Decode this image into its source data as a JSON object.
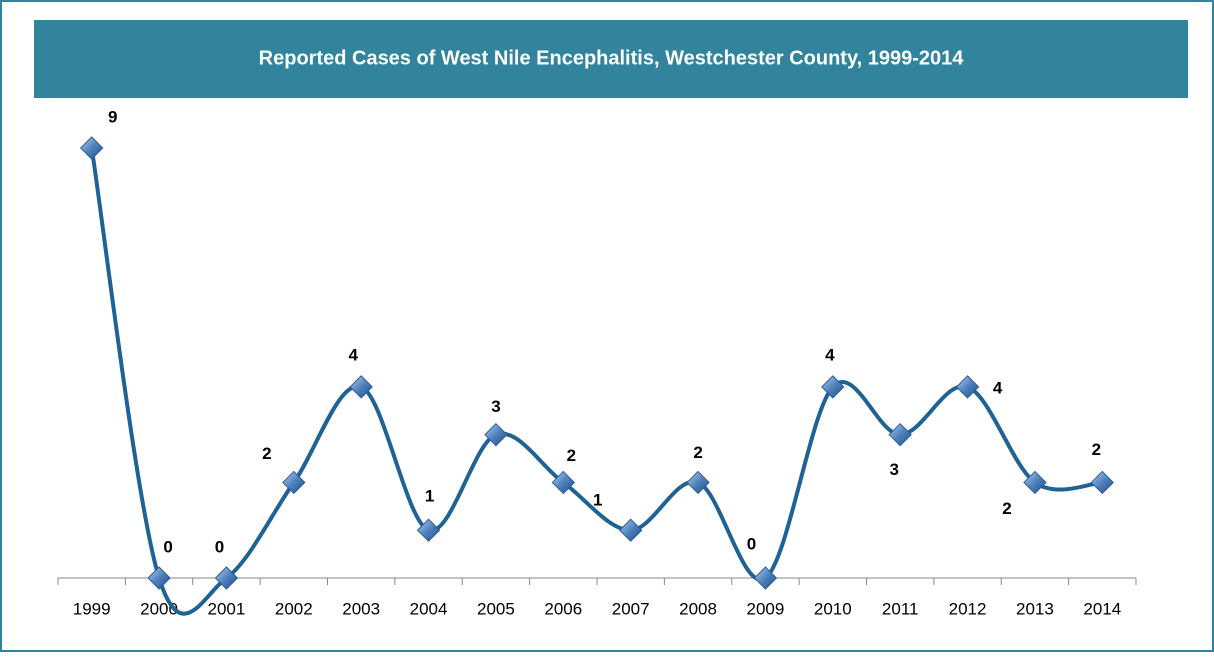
{
  "chart_data": {
    "type": "line",
    "title": "Reported Cases of West Nile Encephalitis, Westchester County, 1999-2014",
    "categories": [
      "1999",
      "2000",
      "2001",
      "2002",
      "2003",
      "2004",
      "2005",
      "2006",
      "2007",
      "2008",
      "2009",
      "2010",
      "2011",
      "2012",
      "2013",
      "2014"
    ],
    "values": [
      9,
      0,
      0,
      2,
      4,
      1,
      3,
      2,
      1,
      2,
      0,
      4,
      3,
      4,
      2,
      2
    ],
    "color": "#1f6394",
    "marker_color": "#4f81bd",
    "ylim": [
      0,
      9
    ]
  }
}
